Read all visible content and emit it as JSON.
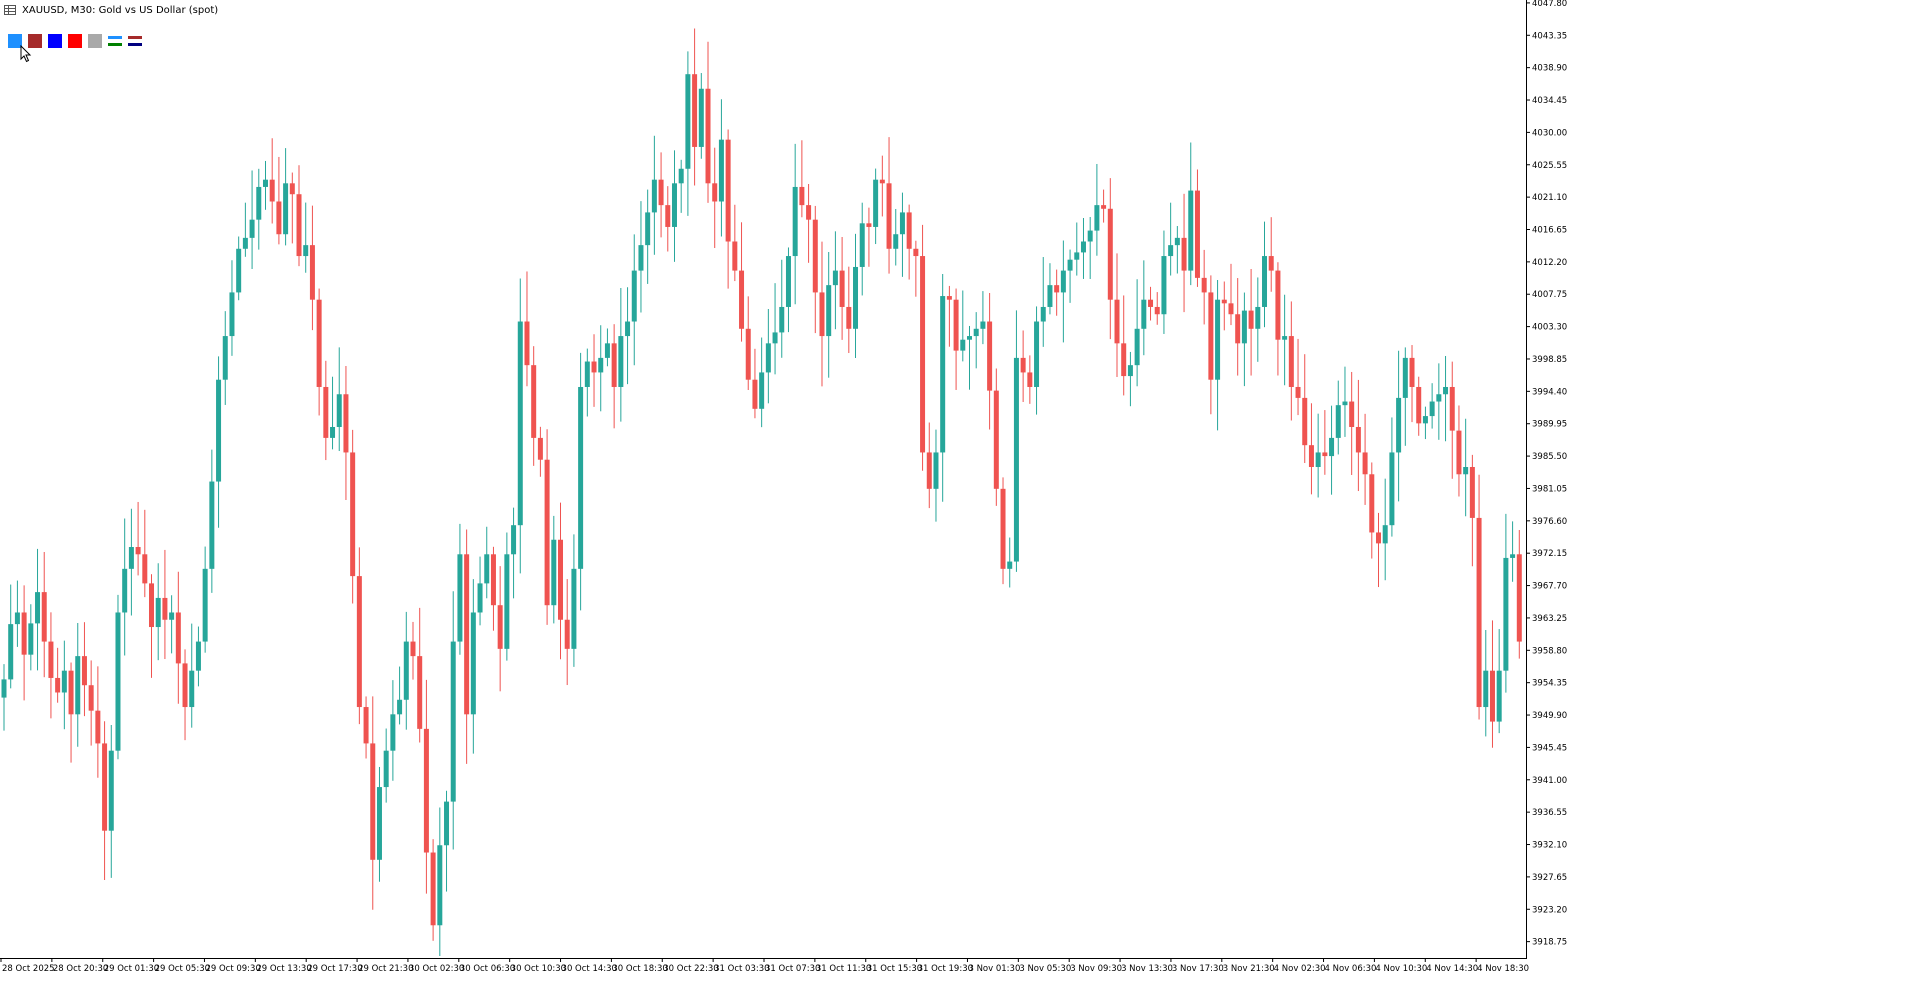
{
  "window": {
    "symbol": "XAUUSD",
    "timeframe": "M30",
    "description": "Gold vs US Dollar (spot)",
    "title": "XAUUSD, M30:  Gold vs US Dollar (spot)"
  },
  "toolbar": {
    "swatches": [
      {
        "name": "background-color",
        "color": "#1E90FF"
      },
      {
        "name": "bear-candle-color",
        "color": "#A52A2A"
      },
      {
        "name": "blue-color",
        "color": "#0000FF"
      },
      {
        "name": "red-color",
        "color": "#FF0000"
      },
      {
        "name": "gray-color",
        "color": "#A9A9A9"
      }
    ],
    "line_icons": [
      {
        "top": "#1E90FF",
        "bottom": "#008000"
      },
      {
        "top": "#A52A2A",
        "bottom": "#000080"
      }
    ]
  },
  "colors": {
    "bull": "#26A69A",
    "bear": "#EF5350",
    "axis": "#000000"
  },
  "chart_data": {
    "type": "candlestick",
    "y_labels": [
      "4047.80",
      "4043.35",
      "4038.90",
      "4034.45",
      "4030.00",
      "4025.55",
      "4021.10",
      "4016.65",
      "4012.20",
      "4007.75",
      "4003.30",
      "3998.85",
      "3994.40",
      "3989.95",
      "3985.50",
      "3981.05",
      "3976.60",
      "3972.15",
      "3967.70",
      "3963.25",
      "3958.80",
      "3954.35",
      "3949.90",
      "3945.45",
      "3941.00",
      "3936.55",
      "3932.10",
      "3927.65",
      "3923.20",
      "3918.75"
    ],
    "x_labels": [
      "28 Oct 2025",
      "28 Oct 20:30",
      "29 Oct 01:30",
      "29 Oct 05:30",
      "29 Oct 09:30",
      "29 Oct 13:30",
      "29 Oct 17:30",
      "29 Oct 21:30",
      "30 Oct 02:30",
      "30 Oct 06:30",
      "30 Oct 10:30",
      "30 Oct 14:30",
      "30 Oct 18:30",
      "30 Oct 22:30",
      "31 Oct 03:30",
      "31 Oct 07:30",
      "31 Oct 11:30",
      "31 Oct 15:30",
      "31 Oct 19:30",
      "3 Nov 01:30",
      "3 Nov 05:30",
      "3 Nov 09:30",
      "3 Nov 13:30",
      "3 Nov 17:30",
      "3 Nov 21:30",
      "4 Nov 02:30",
      "4 Nov 06:30",
      "4 Nov 10:30",
      "4 Nov 14:30",
      "4 Nov 18:30"
    ],
    "ylim": [
      3916.5,
      4048.2
    ],
    "closes": [
      3954.8,
      3962.4,
      3964.0,
      3958.2,
      3962.5,
      3966.8,
      3960.0,
      3955.0,
      3953.0,
      3956.0,
      3950.0,
      3958.0,
      3954.0,
      3950.5,
      3946.0,
      3934.0,
      3945.0,
      3964.0,
      3970.0,
      3973.0,
      3972.0,
      3968.0,
      3962.0,
      3966.0,
      3963.0,
      3964.0,
      3957.0,
      3951.0,
      3956.0,
      3960.0,
      3970.0,
      3982.0,
      3996.0,
      4002.0,
      4008.0,
      4014.0,
      4015.5,
      4018.0,
      4022.5,
      4023.5,
      4020.5,
      4016.0,
      4023.0,
      4021.5,
      4013.0,
      4014.5,
      4007.0,
      3995.0,
      3988.0,
      3989.5,
      3994.0,
      3986.0,
      3969.0,
      3951.0,
      3946.0,
      3930.0,
      3940.0,
      3945.0,
      3950.0,
      3952.0,
      3960.0,
      3958.0,
      3948.0,
      3931.0,
      3921.0,
      3932.0,
      3938.0,
      3960.0,
      3972.0,
      3950.0,
      3964.0,
      3968.0,
      3972.0,
      3965.0,
      3959.0,
      3972.0,
      3976.0,
      4004.0,
      3998.0,
      3988.0,
      3985.0,
      3965.0,
      3974.0,
      3963.0,
      3959.0,
      3970.0,
      3995.0,
      3998.5,
      3997.0,
      3999.0,
      4001.0,
      3995.0,
      4002.0,
      4004.0,
      4011.0,
      4014.5,
      4019.0,
      4023.5,
      4020.0,
      4017.0,
      4023.0,
      4025.0,
      4038.0,
      4028.0,
      4036.0,
      4023.0,
      4020.5,
      4029.0,
      4015.0,
      4011.0,
      4003.0,
      3996.0,
      3992.0,
      3997.0,
      4001.0,
      4002.5,
      4006.0,
      4013.0,
      4022.5,
      4020.0,
      4018.0,
      4008.0,
      4002.0,
      4009.0,
      4011.0,
      4006.0,
      4003.0,
      4011.5,
      4017.5,
      4017.0,
      4023.5,
      4023.0,
      4014.0,
      4016.0,
      4019.0,
      4014.0,
      4013.0,
      3986.0,
      3981.0,
      3986.0,
      4007.5,
      4007.0,
      4000.0,
      4001.5,
      4002.0,
      4003.0,
      4004.0,
      3994.5,
      3981.0,
      3970.0,
      3971.0,
      3999.0,
      3997.0,
      3995.0,
      4004.0,
      4006.0,
      4009.0,
      4008.0,
      4011.0,
      4012.5,
      4013.5,
      4015.0,
      4016.5,
      4020.0,
      4019.5,
      4007.0,
      4001.0,
      3996.5,
      3998.0,
      4003.0,
      4007.0,
      4006.0,
      4005.0,
      4013.0,
      4014.5,
      4015.5,
      4011.0,
      4022.0,
      4010.0,
      4008.0,
      3996.0,
      4007.0,
      4006.5,
      4005.0,
      4001.0,
      4005.5,
      4003.0,
      4006.0,
      4013.0,
      4011.0,
      4001.5,
      4002.0,
      3995.0,
      3993.5,
      3987.0,
      3984.0,
      3986.0,
      3985.5,
      3988.0,
      3992.5,
      3993.0,
      3989.5,
      3986.0,
      3983.0,
      3975.0,
      3973.5,
      3976.0,
      3986.0,
      3993.5,
      3999.0,
      3995.0,
      3990.0,
      3991.0,
      3993.0,
      3994.0,
      3995.0,
      3989.0,
      3983.0,
      3984.0,
      3977.0,
      3951.0,
      3956.0,
      3949.0,
      3956.0,
      3971.5,
      3972.0,
      3960.0
    ]
  }
}
